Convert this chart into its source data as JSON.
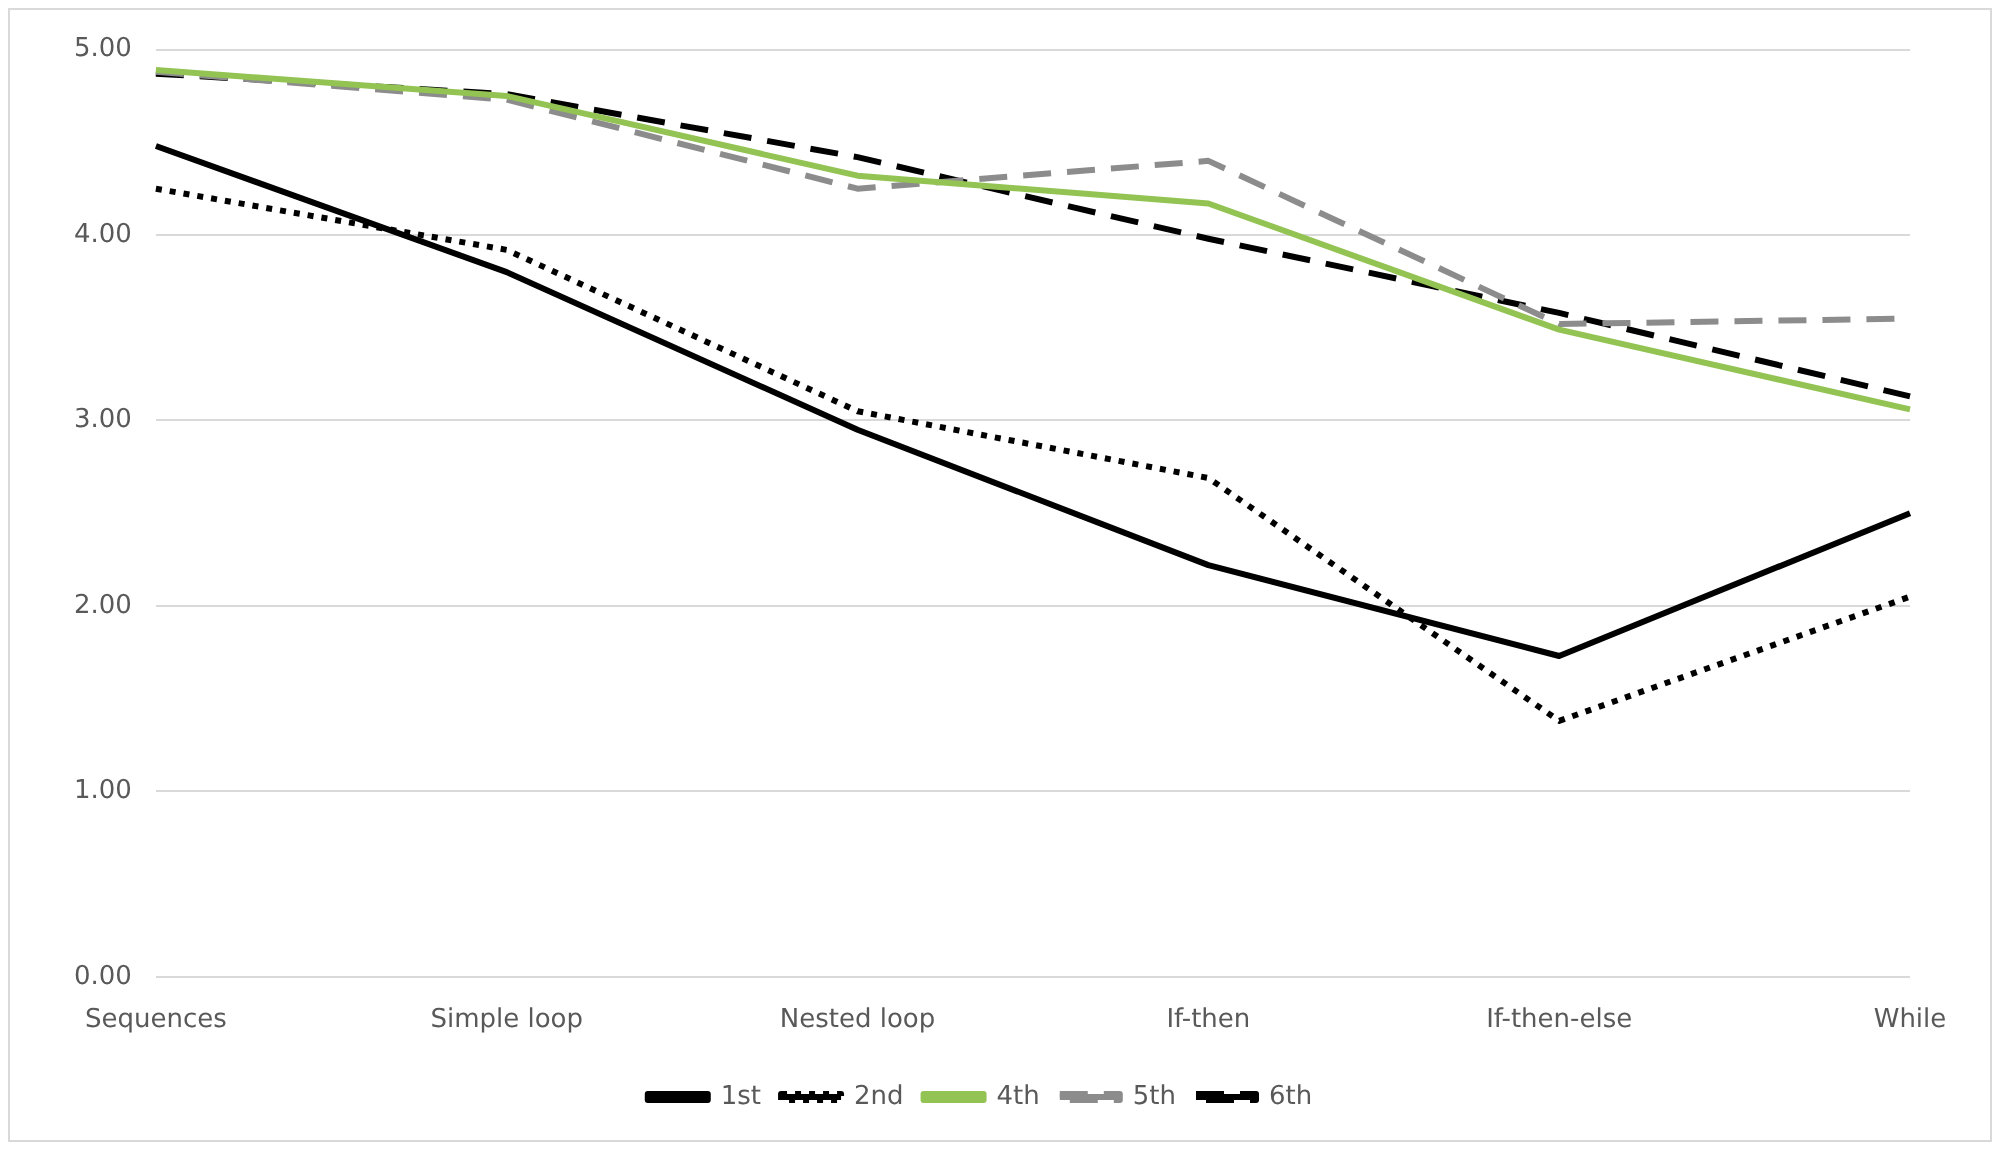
{
  "chart_data": {
    "type": "line",
    "categories": [
      "Sequences",
      "Simple loop",
      "Nested loop",
      "If-then",
      "If-then-else",
      "While"
    ],
    "series": [
      {
        "name": "1st",
        "color": "#000000",
        "line_style": "solid",
        "values": [
          4.48,
          3.8,
          2.95,
          2.22,
          1.73,
          2.5
        ]
      },
      {
        "name": "2nd",
        "color": "#000000",
        "line_style": "dotted",
        "values": [
          4.25,
          3.92,
          3.05,
          2.69,
          1.38,
          2.05
        ]
      },
      {
        "name": "4th",
        "color": "#92c353",
        "line_style": "solid",
        "values": [
          4.89,
          4.75,
          4.32,
          4.17,
          3.49,
          3.06
        ]
      },
      {
        "name": "5th",
        "color": "#8c8c8c",
        "line_style": "dashed",
        "values": [
          4.88,
          4.73,
          4.25,
          4.4,
          3.52,
          3.55
        ]
      },
      {
        "name": "6th",
        "color": "#000000",
        "line_style": "dashed",
        "values": [
          4.87,
          4.76,
          4.42,
          3.98,
          3.58,
          3.13
        ]
      }
    ],
    "ylim": [
      0,
      5
    ],
    "yticks": [
      {
        "value": 0,
        "label": "0.00"
      },
      {
        "value": 1,
        "label": "1.00"
      },
      {
        "value": 2,
        "label": "2.00"
      },
      {
        "value": 3,
        "label": "3.00"
      },
      {
        "value": 4,
        "label": "4.00"
      },
      {
        "value": 5,
        "label": "5.00"
      }
    ],
    "grid": "y",
    "legend": "bottom",
    "marker": "none"
  }
}
